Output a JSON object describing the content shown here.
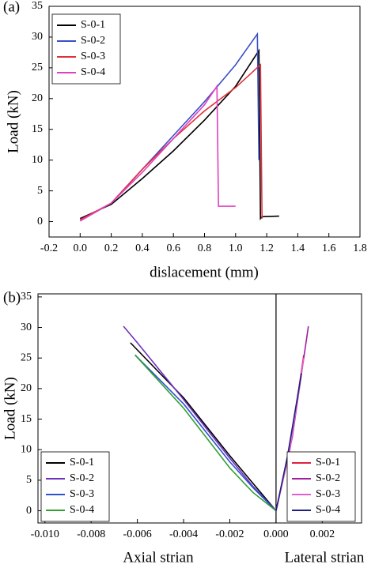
{
  "chart_data": [
    {
      "type": "line",
      "label": "(a)",
      "xlabel": "dislacement (mm)",
      "ylabel": "Load (kN)",
      "xlim": [
        -0.2,
        1.8
      ],
      "ylim": [
        -2.5,
        35
      ],
      "xticks": [
        -0.2,
        {
          "value": 0,
          "label": "0.0"
        },
        0.2,
        0.4,
        0.6,
        0.8,
        {
          "value": 1,
          "label": "1.0"
        },
        1.2,
        1.4,
        1.6,
        1.8
      ],
      "yticks": [
        0,
        5,
        10,
        15,
        20,
        25,
        30,
        35
      ],
      "legend": "upper left",
      "series": [
        {
          "name": "S-0-1",
          "color": "#000000",
          "x": [
            0,
            0.2,
            0.4,
            0.6,
            0.8,
            1.0,
            1.15,
            1.16,
            1.17,
            1.28
          ],
          "values": [
            0.5,
            2.8,
            7.0,
            11.5,
            16.5,
            22,
            27.8,
            0.5,
            0.8,
            0.9
          ]
        },
        {
          "name": "S-0-2",
          "color": "#3a4fc8",
          "x": [
            0,
            0.2,
            0.4,
            0.6,
            0.8,
            1.0,
            1.14,
            1.15
          ],
          "values": [
            0.2,
            3.0,
            8.5,
            14.0,
            19.5,
            25.5,
            30.5,
            10
          ]
        },
        {
          "name": "S-0-3",
          "color": "#e0303a",
          "x": [
            0,
            0.2,
            0.4,
            0.6,
            0.8,
            1.0,
            1.16,
            1.17
          ],
          "values": [
            0.3,
            3.0,
            8.5,
            13.5,
            18.0,
            21.8,
            25.5,
            0.5
          ]
        },
        {
          "name": "S-0-4",
          "color": "#e040c0",
          "x": [
            0,
            0.2,
            0.4,
            0.6,
            0.8,
            0.88,
            0.89,
            1.0
          ],
          "values": [
            0.1,
            3.0,
            8.0,
            13.5,
            19.0,
            22,
            2.5,
            2.5
          ]
        }
      ]
    },
    {
      "type": "line",
      "label": "(b)",
      "xlabel_left": "Axial strian",
      "xlabel_right": "Lateral strian",
      "ylabel": "Load (kN)",
      "xlim": [
        -0.0103,
        0.0037
      ],
      "ylim": [
        -2,
        35.5
      ],
      "xticks": [
        {
          "value": -0.01,
          "label": "-0.010"
        },
        -0.008,
        -0.006,
        -0.004,
        -0.002,
        {
          "value": 0,
          "label": "0.000"
        },
        0.002
      ],
      "yticks": [
        0,
        5,
        10,
        15,
        20,
        25,
        30,
        35
      ],
      "zero_line": true,
      "legend": "lower left",
      "lateral_legend": "lower right",
      "series": [
        {
          "name": "S-0-1",
          "color": "#000000",
          "x": [
            -0.0063,
            -0.004,
            -0.002,
            -0.001,
            0
          ],
          "values": [
            27.5,
            18.5,
            9,
            4.5,
            0
          ]
        },
        {
          "name": "S-0-2",
          "color": "#7030c0",
          "x": [
            -0.0066,
            -0.006,
            -0.004,
            -0.002,
            -0.001,
            0
          ],
          "values": [
            30.2,
            27.5,
            18.2,
            8.6,
            4,
            0
          ]
        },
        {
          "name": "S-0-3",
          "color": "#3050d0",
          "x": [
            -0.0061,
            -0.004,
            -0.002,
            -0.001,
            0
          ],
          "values": [
            25.5,
            17.5,
            8,
            3.8,
            0
          ]
        },
        {
          "name": "S-0-4",
          "color": "#30a030",
          "x": [
            -0.0061,
            -0.004,
            -0.002,
            -0.001,
            0
          ],
          "values": [
            25.5,
            16.8,
            7,
            3,
            0
          ]
        }
      ],
      "lateral_series": [
        {
          "name": "S-0-1",
          "color": "#e02040",
          "x": [
            0,
            0.0006,
            0.0012
          ],
          "values": [
            0,
            10,
            25.5
          ]
        },
        {
          "name": "S-0-2",
          "color": "#a020a0",
          "x": [
            0,
            0.0007,
            0.0014
          ],
          "values": [
            0,
            12,
            30.2
          ]
        },
        {
          "name": "S-0-3",
          "color": "#e060d0",
          "x": [
            0,
            0.0006,
            0.0012
          ],
          "values": [
            0,
            10,
            25
          ]
        },
        {
          "name": "S-0-4",
          "color": "#202080",
          "x": [
            0,
            0.0005,
            0.0011
          ],
          "values": [
            0,
            9,
            22.5
          ]
        }
      ]
    }
  ]
}
